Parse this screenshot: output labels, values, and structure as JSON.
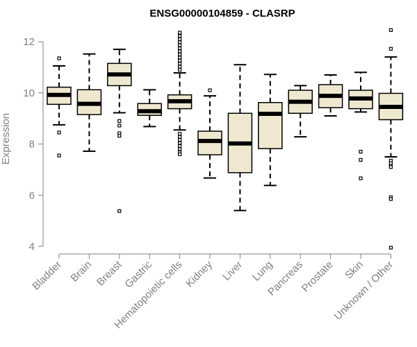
{
  "chart_data": {
    "type": "boxplot",
    "title": "ENSG00000104859 - CLASRP",
    "xlabel": "",
    "ylabel": "Expression",
    "ylim": [
      4,
      12.4
    ],
    "yticks": [
      4,
      6,
      8,
      10,
      12
    ],
    "box_fill": "#efe8d0",
    "categories": [
      "Bladder",
      "Brain",
      "Breast",
      "Gastric",
      "Hematopoietic cells",
      "Kidney",
      "Liver",
      "Lung",
      "Pancreas",
      "Prostate",
      "Skin",
      "Unknown / Other"
    ],
    "boxes": [
      {
        "name": "Bladder",
        "whisker_low": 8.75,
        "q1": 9.55,
        "median": 9.92,
        "q3": 10.22,
        "whisker_high": 11.05,
        "outliers": [
          11.35,
          8.45,
          7.55
        ]
      },
      {
        "name": "Brain",
        "whisker_low": 7.72,
        "q1": 9.15,
        "median": 9.57,
        "q3": 10.12,
        "whisker_high": 11.52,
        "outliers": []
      },
      {
        "name": "Breast",
        "whisker_low": 9.22,
        "q1": 10.28,
        "median": 10.72,
        "q3": 11.15,
        "whisker_high": 11.7,
        "outliers": [
          8.9,
          8.72,
          8.42,
          8.32,
          5.38
        ]
      },
      {
        "name": "Gastric",
        "whisker_low": 8.68,
        "q1": 9.12,
        "median": 9.28,
        "q3": 9.58,
        "whisker_high": 10.12,
        "outliers": []
      },
      {
        "name": "Hematopoietic cells",
        "whisker_low": 8.55,
        "q1": 9.38,
        "median": 9.67,
        "q3": 9.92,
        "whisker_high": 10.78,
        "outliers": [
          12.35,
          12.22,
          12.1,
          11.98,
          11.86,
          11.74,
          11.62,
          11.5,
          11.38,
          11.26,
          11.14,
          11.02,
          10.9,
          8.4,
          8.28,
          8.16,
          8.04,
          7.92,
          7.8,
          7.68,
          7.6
        ]
      },
      {
        "name": "Kidney",
        "whisker_low": 6.67,
        "q1": 7.58,
        "median": 8.12,
        "q3": 8.5,
        "whisker_high": 9.88,
        "outliers": [
          10.1
        ]
      },
      {
        "name": "Liver",
        "whisker_low": 5.4,
        "q1": 6.88,
        "median": 8.02,
        "q3": 9.2,
        "whisker_high": 11.1,
        "outliers": []
      },
      {
        "name": "Lung",
        "whisker_low": 6.38,
        "q1": 7.82,
        "median": 9.18,
        "q3": 9.62,
        "whisker_high": 10.72,
        "outliers": []
      },
      {
        "name": "Pancreas",
        "whisker_low": 8.28,
        "q1": 9.2,
        "median": 9.65,
        "q3": 10.1,
        "whisker_high": 10.28,
        "outliers": []
      },
      {
        "name": "Prostate",
        "whisker_low": 9.1,
        "q1": 9.42,
        "median": 9.88,
        "q3": 10.32,
        "whisker_high": 10.7,
        "outliers": []
      },
      {
        "name": "Skin",
        "whisker_low": 9.25,
        "q1": 9.38,
        "median": 9.78,
        "q3": 10.1,
        "whisker_high": 10.8,
        "outliers": [
          7.7,
          7.38,
          6.66
        ]
      },
      {
        "name": "Unknown / Other",
        "whisker_low": 7.5,
        "q1": 8.95,
        "median": 9.45,
        "q3": 9.98,
        "whisker_high": 11.4,
        "outliers": [
          12.45,
          11.72,
          7.35,
          7.25,
          7.15,
          7.1,
          5.92,
          5.85,
          3.95
        ]
      }
    ]
  }
}
